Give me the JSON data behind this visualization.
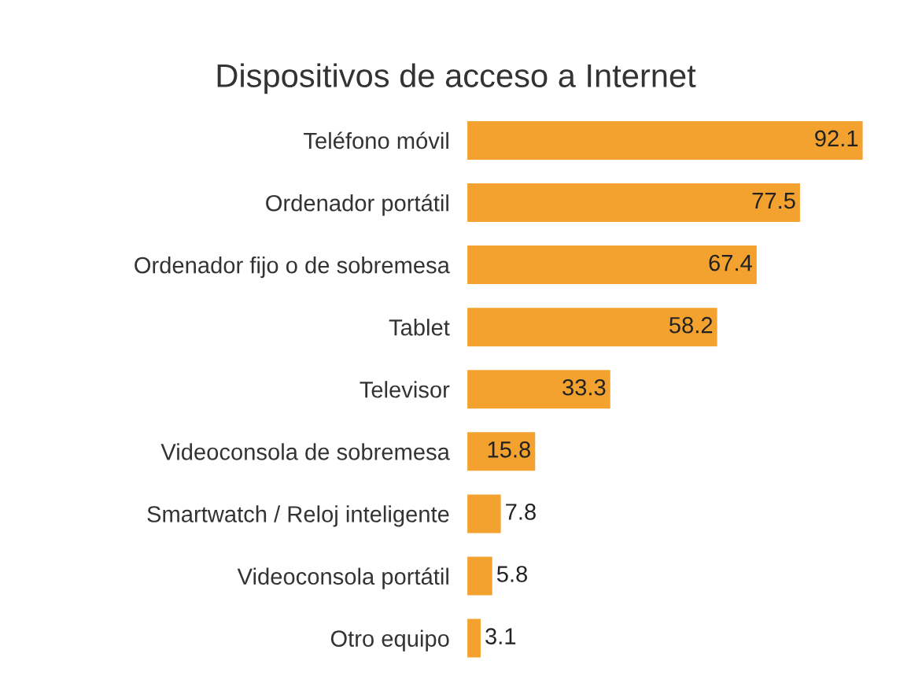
{
  "chart_data": {
    "type": "bar",
    "orientation": "horizontal",
    "title": "Dispositivos de acceso a Internet",
    "categories": [
      "Teléfono móvil",
      "Ordenador portátil",
      "Ordenador fijo o de sobremesa",
      "Tablet",
      "Televisor",
      "Videoconsola de sobremesa",
      "Smartwatch / Reloj inteligente",
      "Videoconsola portátil",
      "Otro equipo"
    ],
    "values": [
      92.1,
      77.5,
      67.4,
      58.2,
      33.3,
      15.8,
      7.8,
      5.8,
      3.1
    ],
    "color": "#f3a22f",
    "data_labels": true,
    "grid": false,
    "legend": false
  }
}
